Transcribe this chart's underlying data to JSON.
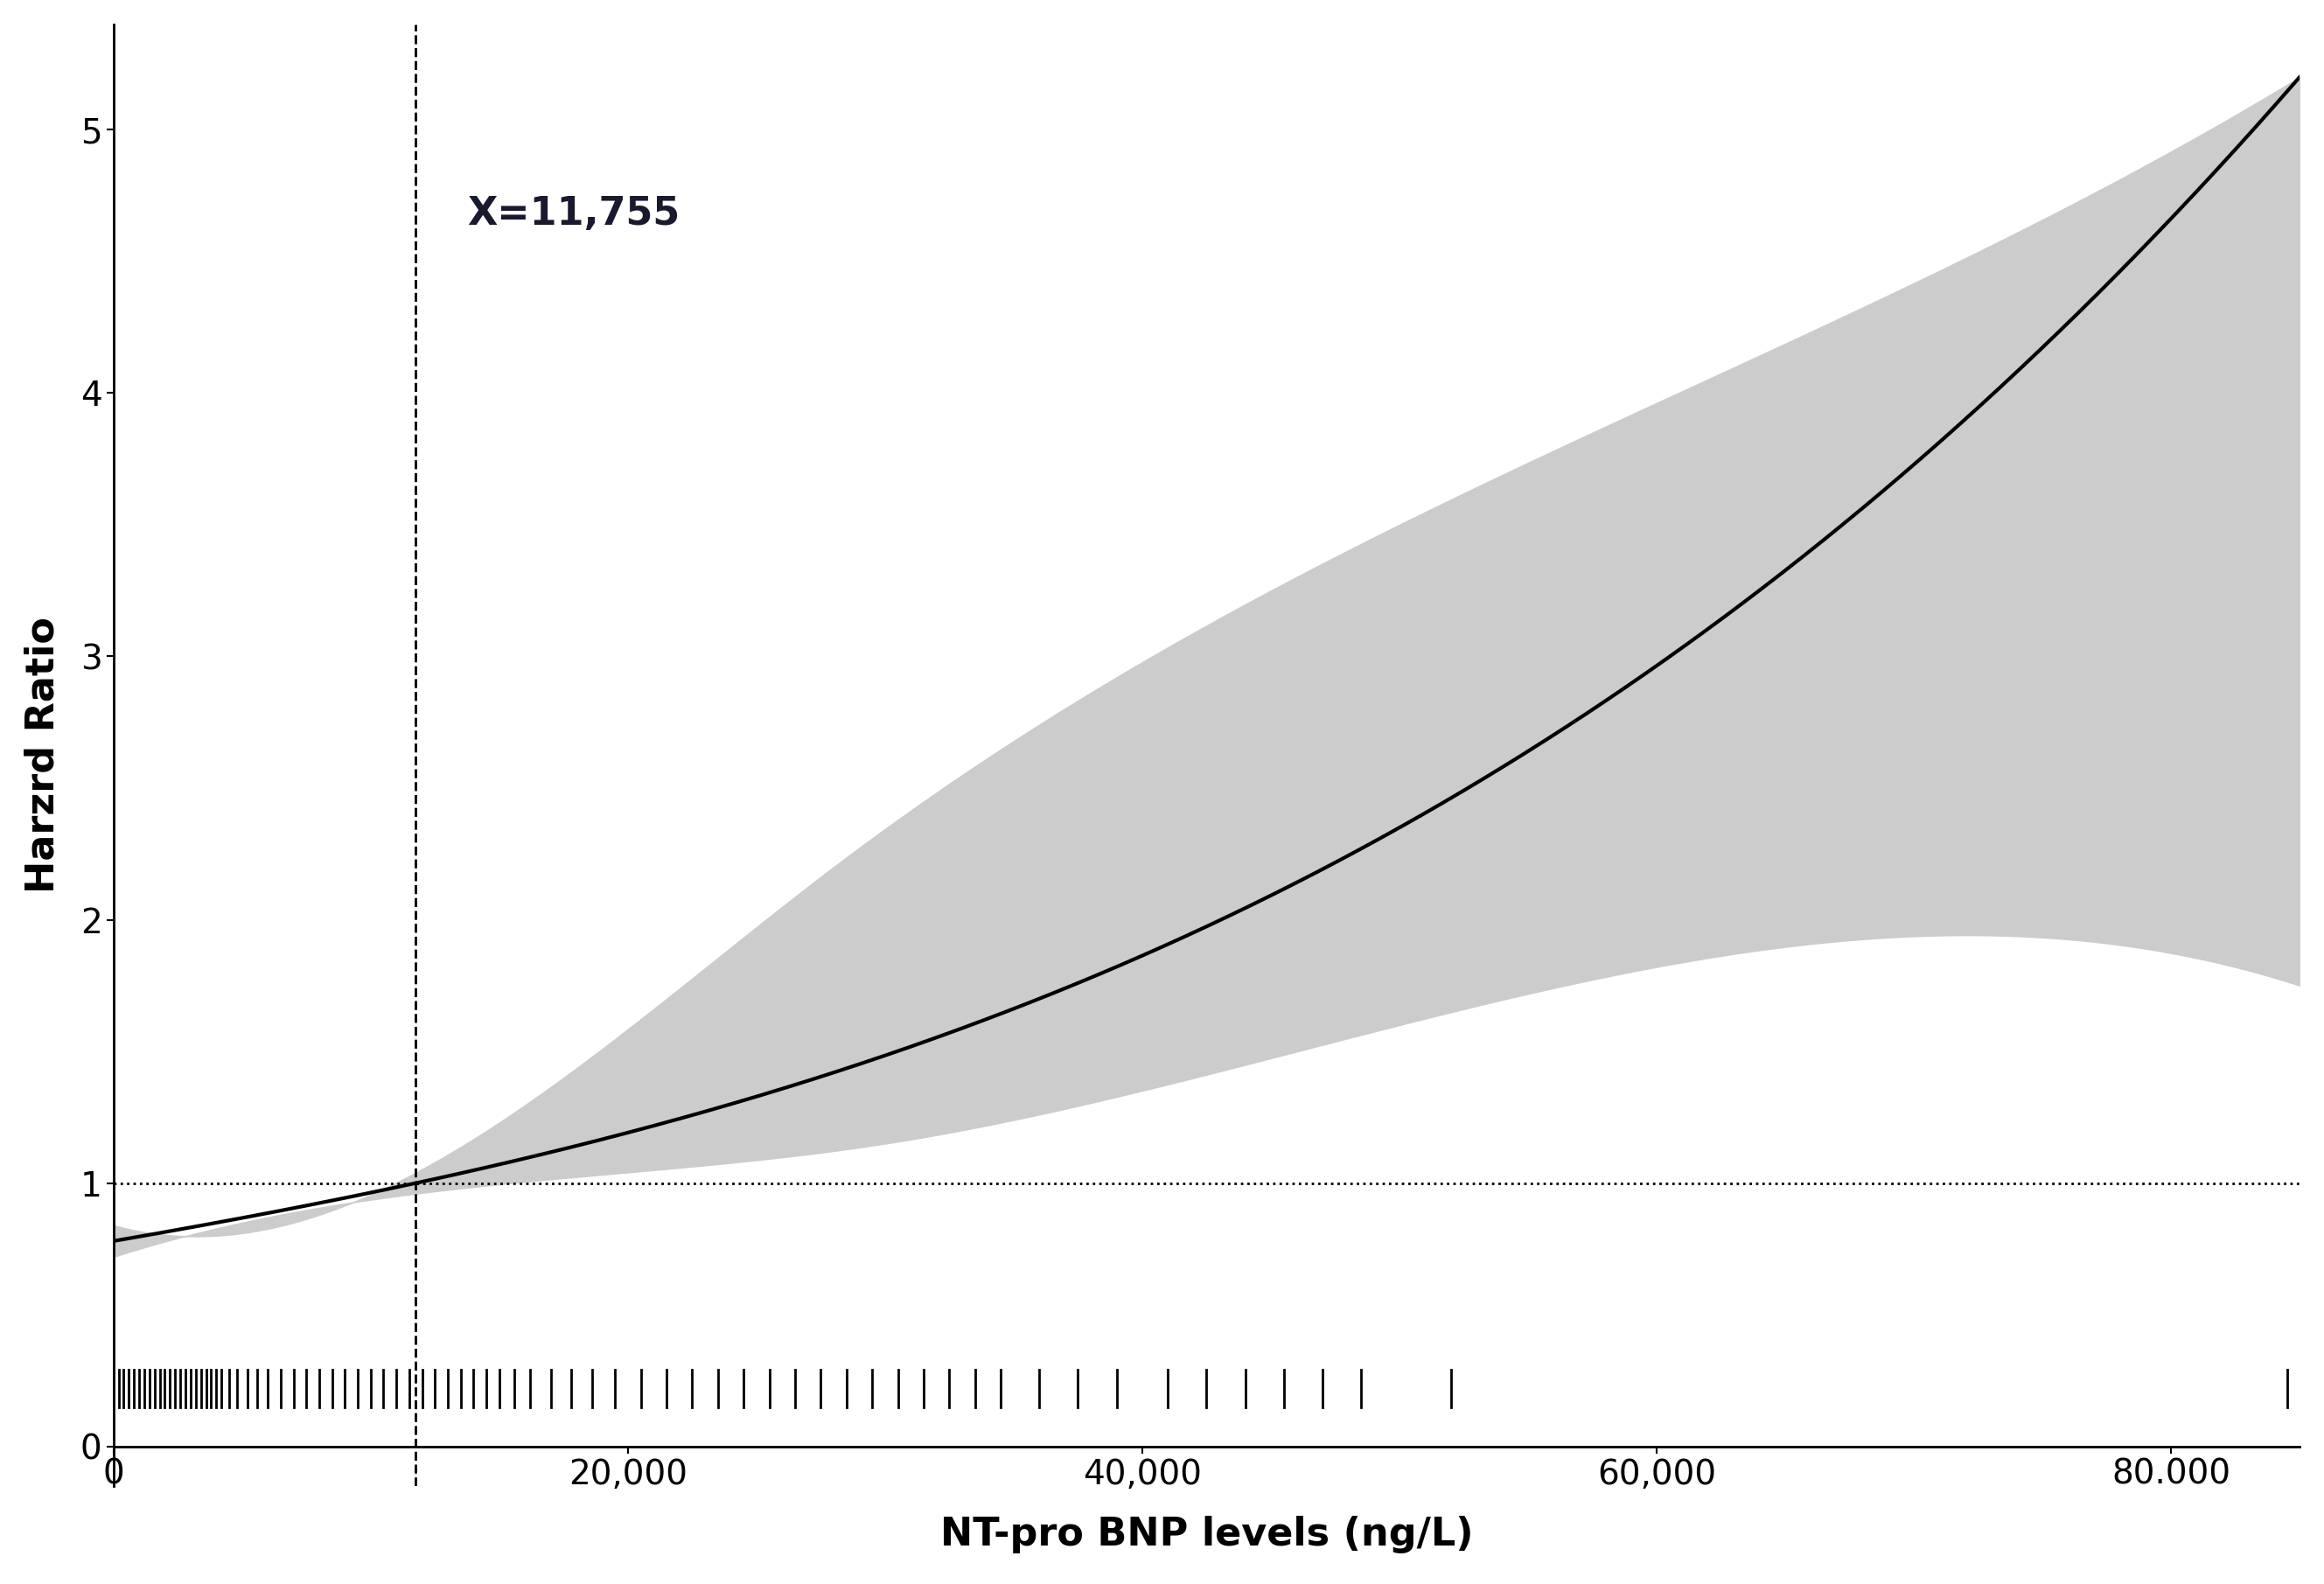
{
  "xlabel": "NT-pro BNP levels (ng/L)",
  "ylabel": "Harzrd Ratio",
  "xmin": 0,
  "xmax": 85000,
  "ymin": -0.15,
  "ymax": 5.4,
  "yticks": [
    0,
    1,
    2,
    3,
    4,
    5
  ],
  "xticks": [
    0,
    20000,
    40000,
    60000,
    80000
  ],
  "xtick_labels": [
    "0",
    "20,000",
    "40,000",
    "60,000",
    "80.000"
  ],
  "vline_x": 11755,
  "vline_label": "X=11,755",
  "hline_y": 1.0,
  "line_color": "#000000",
  "ci_color": "#cccccc",
  "background_color": "#ffffff",
  "annotation_fontsize": 32,
  "xlabel_fontsize": 32,
  "ylabel_fontsize": 32,
  "tick_fontsize": 28,
  "annotation_color": "#1a1a2e",
  "rug_y": 0.22,
  "rug_height": 0.14,
  "rug_linewidth": 2.0,
  "rug_data": [
    200,
    400,
    600,
    800,
    1000,
    1200,
    1400,
    1600,
    1800,
    2000,
    2200,
    2400,
    2600,
    2800,
    3000,
    3200,
    3400,
    3600,
    3800,
    4000,
    4200,
    4500,
    4800,
    5200,
    5600,
    6000,
    6500,
    7000,
    7500,
    8000,
    8500,
    9000,
    9500,
    10000,
    10500,
    11000,
    11500,
    12000,
    12500,
    13000,
    13500,
    14000,
    14500,
    15000,
    15600,
    16200,
    17000,
    17800,
    18600,
    19500,
    20500,
    21500,
    22500,
    23500,
    24500,
    25500,
    26500,
    27500,
    28500,
    29500,
    30500,
    31500,
    32500,
    33500,
    34500,
    36000,
    37500,
    39000,
    41000,
    42500,
    44000,
    45500,
    47000,
    48500,
    52000,
    84500
  ]
}
